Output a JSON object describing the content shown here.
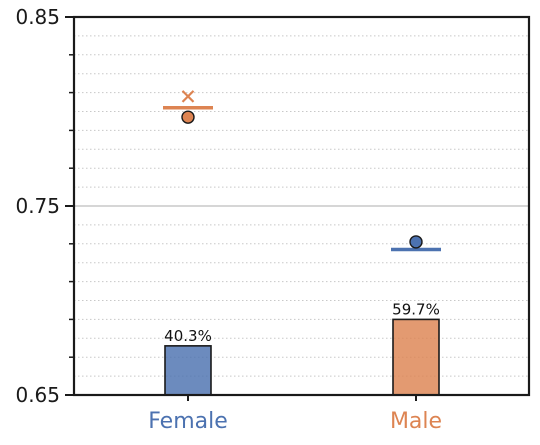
{
  "chart_data": {
    "type": "bar",
    "categories": [
      "Female",
      "Male"
    ],
    "ylim": [
      0.65,
      0.85
    ],
    "yticks": [
      0.65,
      0.75,
      0.85
    ],
    "ytick_labels": [
      "0.65",
      "0.75",
      "0.85"
    ],
    "grid": "horizontal dotted minor lines; solid line at 0.75",
    "bars": {
      "values": [
        0.676,
        0.69
      ],
      "labels": [
        "40.3%",
        "59.7%"
      ]
    },
    "hline_markers": [
      0.802,
      0.727
    ],
    "circle_markers": [
      0.797,
      0.731
    ],
    "x_markers": [
      0.808,
      null
    ],
    "colors": {
      "Female": "#4c72b0",
      "Male": "#dd8452",
      "axis": "#1a1a1a",
      "grid": "#c8c8c8"
    }
  }
}
